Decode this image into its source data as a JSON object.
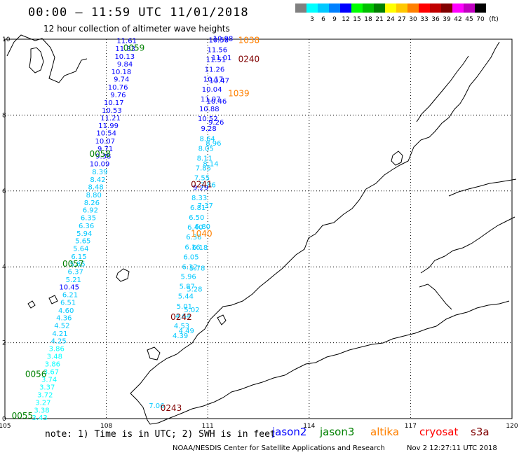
{
  "title": "00:00 – 11:59 UTC 11/01/2018",
  "subtitle": "12 hour collection of altimeter wave heights",
  "legend": {
    "unit": "(ft)",
    "bins": [
      {
        "label": "",
        "color": "#808080"
      },
      {
        "label": "3",
        "color": "#00ffff"
      },
      {
        "label": "6",
        "color": "#00c8ff"
      },
      {
        "label": "9",
        "color": "#0080ff"
      },
      {
        "label": "12",
        "color": "#0000ff"
      },
      {
        "label": "15",
        "color": "#00ff00"
      },
      {
        "label": "18",
        "color": "#00c000"
      },
      {
        "label": "21",
        "color": "#008000"
      },
      {
        "label": "24",
        "color": "#ffff00"
      },
      {
        "label": "27",
        "color": "#ffc800"
      },
      {
        "label": "30",
        "color": "#ff8000"
      },
      {
        "label": "33",
        "color": "#ff0000"
      },
      {
        "label": "36",
        "color": "#c00000"
      },
      {
        "label": "39",
        "color": "#800000"
      },
      {
        "label": "42",
        "color": "#ff00ff"
      },
      {
        "label": "45",
        "color": "#c000c0"
      },
      {
        "label": "70",
        "color": "#000000"
      }
    ]
  },
  "axes": {
    "lon_ticks": [
      "105",
      "108",
      "111",
      "114",
      "117",
      "120"
    ],
    "lat_ticks": [
      "0",
      "2",
      "4",
      "6",
      "8",
      "10"
    ]
  },
  "track_labels": [
    {
      "text": "0059",
      "color": "#008000",
      "lon": 108.5,
      "lat": 9.7
    },
    {
      "text": "0058",
      "color": "#008000",
      "lon": 107.5,
      "lat": 6.9
    },
    {
      "text": "0057",
      "color": "#008000",
      "lon": 106.7,
      "lat": 4.0
    },
    {
      "text": "0056",
      "color": "#008000",
      "lon": 105.6,
      "lat": 1.1
    },
    {
      "text": "0055",
      "color": "#008000",
      "lon": 105.2,
      "lat": 0.0
    },
    {
      "text": "1038",
      "color": "#ff8000",
      "lon": 111.9,
      "lat": 9.9
    },
    {
      "text": "1039",
      "color": "#ff8000",
      "lon": 111.6,
      "lat": 8.5
    },
    {
      "text": "1040",
      "color": "#ff8000",
      "lon": 110.5,
      "lat": 4.8
    },
    {
      "text": "0240",
      "color": "#800000",
      "lon": 111.9,
      "lat": 9.4
    },
    {
      "text": "0241",
      "color": "#800000",
      "lon": 110.5,
      "lat": 6.1
    },
    {
      "text": "0242",
      "color": "#800000",
      "lon": 109.9,
      "lat": 2.6
    },
    {
      "text": "0243",
      "color": "#800000",
      "lon": 109.6,
      "lat": 0.2
    }
  ],
  "observations": {
    "jason3": [
      {
        "lon": 108.9,
        "lat": 9.9,
        "text": "11.61",
        "color": "#0000ff"
      },
      {
        "lon": 108.86,
        "lat": 9.69,
        "text": "11.83",
        "color": "#0000ff"
      },
      {
        "lon": 108.84,
        "lat": 9.48,
        "text": "10.13",
        "color": "#0000ff"
      },
      {
        "lon": 108.78,
        "lat": 9.28,
        "text": "9.84",
        "color": "#0000ff"
      },
      {
        "lon": 108.74,
        "lat": 9.08,
        "text": "10.18",
        "color": "#0000ff"
      },
      {
        "lon": 108.68,
        "lat": 8.88,
        "text": "9.74",
        "color": "#0000ff"
      },
      {
        "lon": 108.64,
        "lat": 8.67,
        "text": "10.76",
        "color": "#0000ff"
      },
      {
        "lon": 108.58,
        "lat": 8.47,
        "text": "9.76",
        "color": "#0000ff"
      },
      {
        "lon": 108.52,
        "lat": 8.27,
        "text": "10.17",
        "color": "#0000ff"
      },
      {
        "lon": 108.46,
        "lat": 8.06,
        "text": "10.53",
        "color": "#0000ff"
      },
      {
        "lon": 108.42,
        "lat": 7.86,
        "text": "11.21",
        "color": "#0000ff"
      },
      {
        "lon": 108.36,
        "lat": 7.66,
        "text": "11.99",
        "color": "#0000ff"
      },
      {
        "lon": 108.3,
        "lat": 7.46,
        "text": "10.54",
        "color": "#0000ff"
      },
      {
        "lon": 108.26,
        "lat": 7.25,
        "text": "10.07",
        "color": "#0000ff"
      },
      {
        "lon": 108.2,
        "lat": 7.05,
        "text": "9.71",
        "color": "#0000ff"
      },
      {
        "lon": 108.14,
        "lat": 6.85,
        "text": "9.38",
        "color": "#0000ff"
      },
      {
        "lon": 108.1,
        "lat": 6.65,
        "text": "10.09",
        "color": "#0000ff"
      },
      {
        "lon": 108.04,
        "lat": 6.44,
        "text": "8.39",
        "color": "#00c8ff"
      },
      {
        "lon": 107.98,
        "lat": 6.24,
        "text": "8.42",
        "color": "#00c8ff"
      },
      {
        "lon": 107.92,
        "lat": 6.04,
        "text": "8.48",
        "color": "#00c8ff"
      },
      {
        "lon": 107.86,
        "lat": 5.83,
        "text": "8.80",
        "color": "#00c8ff"
      },
      {
        "lon": 107.8,
        "lat": 5.63,
        "text": "8.26",
        "color": "#00c8ff"
      },
      {
        "lon": 107.76,
        "lat": 5.43,
        "text": "6.92",
        "color": "#00c8ff"
      },
      {
        "lon": 107.7,
        "lat": 5.23,
        "text": "6.35",
        "color": "#00c8ff"
      },
      {
        "lon": 107.64,
        "lat": 5.02,
        "text": "6.36",
        "color": "#00c8ff"
      },
      {
        "lon": 107.58,
        "lat": 4.82,
        "text": "5.94",
        "color": "#00c8ff"
      },
      {
        "lon": 107.54,
        "lat": 4.62,
        "text": "5.65",
        "color": "#00c8ff"
      },
      {
        "lon": 107.48,
        "lat": 4.42,
        "text": "5.64",
        "color": "#00c8ff"
      },
      {
        "lon": 107.42,
        "lat": 4.21,
        "text": "6.15",
        "color": "#00c8ff"
      },
      {
        "lon": 107.38,
        "lat": 4.01,
        "text": "5.85",
        "color": "#00c8ff"
      },
      {
        "lon": 107.32,
        "lat": 3.81,
        "text": "6.37",
        "color": "#00c8ff"
      },
      {
        "lon": 107.26,
        "lat": 3.6,
        "text": "5.21",
        "color": "#00c8ff"
      },
      {
        "lon": 107.2,
        "lat": 3.4,
        "text": "10.45",
        "color": "#0000ff"
      },
      {
        "lon": 107.16,
        "lat": 3.2,
        "text": "6.21",
        "color": "#00c8ff"
      },
      {
        "lon": 107.1,
        "lat": 3.0,
        "text": "6.51",
        "color": "#00c8ff"
      },
      {
        "lon": 107.04,
        "lat": 2.79,
        "text": "4.60",
        "color": "#00c8ff"
      },
      {
        "lon": 106.98,
        "lat": 2.59,
        "text": "4.36",
        "color": "#00c8ff"
      },
      {
        "lon": 106.92,
        "lat": 2.39,
        "text": "4.52",
        "color": "#00c8ff"
      },
      {
        "lon": 106.86,
        "lat": 2.18,
        "text": "4.21",
        "color": "#00c8ff"
      },
      {
        "lon": 106.82,
        "lat": 1.98,
        "text": "4.25",
        "color": "#00c8ff"
      },
      {
        "lon": 106.76,
        "lat": 1.78,
        "text": "3.86",
        "color": "#00ffff"
      },
      {
        "lon": 106.7,
        "lat": 1.58,
        "text": "3.48",
        "color": "#00ffff"
      },
      {
        "lon": 106.64,
        "lat": 1.37,
        "text": "3.86",
        "color": "#00ffff"
      },
      {
        "lon": 106.6,
        "lat": 1.17,
        "text": "3.67",
        "color": "#00ffff"
      },
      {
        "lon": 106.54,
        "lat": 0.97,
        "text": "3.74",
        "color": "#00ffff"
      },
      {
        "lon": 106.48,
        "lat": 0.77,
        "text": "3.37",
        "color": "#00ffff"
      },
      {
        "lon": 106.42,
        "lat": 0.56,
        "text": "3.72",
        "color": "#00ffff"
      },
      {
        "lon": 106.36,
        "lat": 0.36,
        "text": "3.27",
        "color": "#00ffff"
      },
      {
        "lon": 106.32,
        "lat": 0.16,
        "text": "3.38",
        "color": "#00ffff"
      },
      {
        "lon": 106.26,
        "lat": -0.04,
        "text": "3.43",
        "color": "#00ffff"
      }
    ],
    "altika": [
      {
        "lon": 111.62,
        "lat": 9.92,
        "text": "10.58",
        "color": "#0000ff"
      },
      {
        "lon": 111.58,
        "lat": 9.66,
        "text": "11.56",
        "color": "#0000ff"
      },
      {
        "lon": 111.54,
        "lat": 9.4,
        "text": "11.51",
        "color": "#0000ff"
      },
      {
        "lon": 111.5,
        "lat": 9.14,
        "text": "11.26",
        "color": "#0000ff"
      },
      {
        "lon": 111.46,
        "lat": 8.88,
        "text": "10.17",
        "color": "#0000ff"
      },
      {
        "lon": 111.42,
        "lat": 8.62,
        "text": "10.04",
        "color": "#0000ff"
      },
      {
        "lon": 111.38,
        "lat": 8.36,
        "text": "11.07",
        "color": "#0000ff"
      },
      {
        "lon": 111.34,
        "lat": 8.1,
        "text": "10.88",
        "color": "#0000ff"
      },
      {
        "lon": 111.3,
        "lat": 7.84,
        "text": "10.52",
        "color": "#0000ff"
      },
      {
        "lon": 111.26,
        "lat": 7.58,
        "text": "9.28",
        "color": "#0000ff"
      },
      {
        "lon": 111.22,
        "lat": 7.32,
        "text": "8.64",
        "color": "#00c8ff"
      },
      {
        "lon": 111.18,
        "lat": 7.06,
        "text": "8.05",
        "color": "#00c8ff"
      },
      {
        "lon": 111.14,
        "lat": 6.8,
        "text": "8.11",
        "color": "#00c8ff"
      },
      {
        "lon": 111.1,
        "lat": 6.54,
        "text": "7.85",
        "color": "#00c8ff"
      },
      {
        "lon": 111.06,
        "lat": 6.28,
        "text": "7.55",
        "color": "#00c8ff"
      },
      {
        "lon": 111.02,
        "lat": 6.02,
        "text": "9.29",
        "color": "#0000ff"
      },
      {
        "lon": 110.98,
        "lat": 5.76,
        "text": "8.33",
        "color": "#00c8ff"
      },
      {
        "lon": 110.94,
        "lat": 5.5,
        "text": "6.81",
        "color": "#00c8ff"
      },
      {
        "lon": 110.9,
        "lat": 5.24,
        "text": "6.50",
        "color": "#00c8ff"
      },
      {
        "lon": 110.86,
        "lat": 4.98,
        "text": "6.40",
        "color": "#00c8ff"
      },
      {
        "lon": 110.82,
        "lat": 4.72,
        "text": "6.36",
        "color": "#00c8ff"
      },
      {
        "lon": 110.78,
        "lat": 4.46,
        "text": "6.16",
        "color": "#00c8ff"
      },
      {
        "lon": 110.74,
        "lat": 4.2,
        "text": "6.05",
        "color": "#00c8ff"
      },
      {
        "lon": 110.7,
        "lat": 3.94,
        "text": "6.12",
        "color": "#00c8ff"
      },
      {
        "lon": 110.66,
        "lat": 3.68,
        "text": "5.96",
        "color": "#00c8ff"
      },
      {
        "lon": 110.62,
        "lat": 3.42,
        "text": "5.87",
        "color": "#00c8ff"
      },
      {
        "lon": 110.58,
        "lat": 3.16,
        "text": "5.44",
        "color": "#00c8ff"
      },
      {
        "lon": 110.54,
        "lat": 2.9,
        "text": "5.01",
        "color": "#00c8ff"
      },
      {
        "lon": 110.5,
        "lat": 2.64,
        "text": "4.64",
        "color": "#00c8ff"
      },
      {
        "lon": 110.46,
        "lat": 2.38,
        "text": "4.53",
        "color": "#00c8ff"
      },
      {
        "lon": 110.42,
        "lat": 2.12,
        "text": "4.39",
        "color": "#00c8ff"
      }
    ],
    "cryosat": [
      {
        "lon": 111.75,
        "lat": 9.95,
        "text": "10.98",
        "color": "#0000ff"
      },
      {
        "lon": 111.71,
        "lat": 9.45,
        "text": "11.01",
        "color": "#0000ff"
      },
      {
        "lon": 111.64,
        "lat": 8.85,
        "text": "10.47",
        "color": "#0000ff"
      },
      {
        "lon": 111.56,
        "lat": 8.3,
        "text": "10.46",
        "color": "#0000ff"
      },
      {
        "lon": 111.48,
        "lat": 7.75,
        "text": "9.26",
        "color": "#0000ff"
      },
      {
        "lon": 111.4,
        "lat": 7.2,
        "text": "8.96",
        "color": "#00c8ff"
      },
      {
        "lon": 111.32,
        "lat": 6.65,
        "text": "8.14",
        "color": "#00c8ff"
      },
      {
        "lon": 111.24,
        "lat": 6.1,
        "text": "7.86",
        "color": "#00c8ff"
      },
      {
        "lon": 111.16,
        "lat": 5.55,
        "text": "7.37",
        "color": "#00c8ff"
      },
      {
        "lon": 111.08,
        "lat": 5.0,
        "text": "6.80",
        "color": "#00c8ff"
      },
      {
        "lon": 111.0,
        "lat": 4.45,
        "text": "6.18",
        "color": "#00c8ff"
      },
      {
        "lon": 110.92,
        "lat": 3.9,
        "text": "5.78",
        "color": "#00c8ff"
      },
      {
        "lon": 110.84,
        "lat": 3.35,
        "text": "5.28",
        "color": "#00c8ff"
      },
      {
        "lon": 110.76,
        "lat": 2.8,
        "text": "5.02",
        "color": "#00c8ff"
      },
      {
        "lon": 110.6,
        "lat": 2.25,
        "text": "4.49",
        "color": "#00c8ff"
      },
      {
        "lon": 109.72,
        "lat": 0.28,
        "text": "7.06",
        "color": "#00c8ff"
      }
    ]
  },
  "note": "note:  1) Time is in UTC; 2) SWH is in feet",
  "satellites": [
    {
      "name": "jason2",
      "color": "#0000ff"
    },
    {
      "name": "jason3",
      "color": "#008000"
    },
    {
      "name": "altika",
      "color": "#ff8000"
    },
    {
      "name": "cryosat",
      "color": "#ff0000"
    },
    {
      "name": "s3a",
      "color": "#800000"
    }
  ],
  "credit": "NOAA/NESDIS Center for Satellite Applications and Research",
  "timestamp": "Nov  2 12:27:11 UTC 2018"
}
